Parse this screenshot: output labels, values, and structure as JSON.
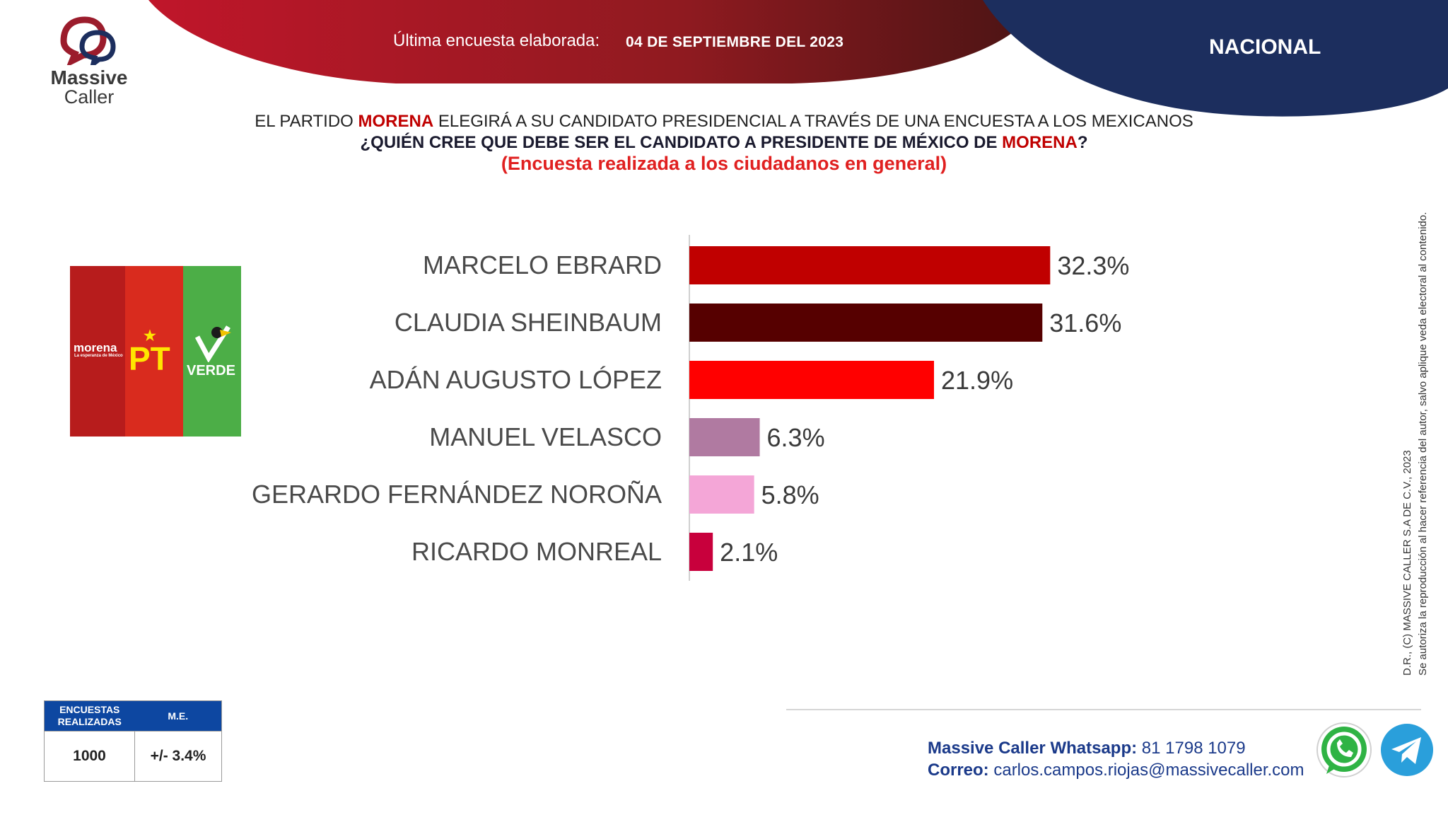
{
  "brand": {
    "name_line1": "Massive",
    "name_line2": "Caller"
  },
  "header": {
    "survey_label": "Última encuesta elaborada:",
    "survey_date": "04 DE SEPTIEMBRE DEL 2023",
    "scope": "NACIONAL",
    "colors": {
      "red": "#9d1b22",
      "navy": "#1c2e5e"
    }
  },
  "title": {
    "line1_pre": "EL PARTIDO ",
    "line1_party": "MORENA",
    "line1_post": " ELEGIRÁ A SU CANDIDATO PRESIDENCIAL A TRAVÉS DE UNA ENCUESTA A LOS MEXICANOS",
    "line2_pre": "¿QUIÉN CREE QUE DEBE SER EL CANDIDATO A PRESIDENTE DE MÉXICO DE ",
    "line2_party": "MORENA",
    "line2_post": "?",
    "line3": "(Encuesta realizada a los ciudadanos en general)"
  },
  "parties": {
    "morena": "morena",
    "morena_sub": "La esperanza de México",
    "pt": "PT",
    "verde": "VERDE"
  },
  "chart_data": {
    "type": "bar",
    "orientation": "horizontal",
    "categories": [
      "MARCELO EBRARD",
      "CLAUDIA SHEINBAUM",
      "ADÁN AUGUSTO LÓPEZ",
      "MANUEL VELASCO",
      "GERARDO FERNÁNDEZ NOROÑA",
      "RICARDO MONREAL"
    ],
    "values": [
      32.3,
      31.6,
      21.9,
      6.3,
      5.8,
      2.1
    ],
    "value_labels": [
      "32.3%",
      "31.6%",
      "21.9%",
      "6.3%",
      "5.8%",
      "2.1%"
    ],
    "colors": [
      "#c00000",
      "#560000",
      "#ff0000",
      "#b07aa1",
      "#f4a6d7",
      "#c8003c"
    ],
    "unit": "%"
  },
  "stats": {
    "col1_header": "ENCUESTAS REALIZADAS",
    "col2_header": "M.E.",
    "surveys": "1000",
    "margin_of_error": "+/- 3.4%"
  },
  "contact": {
    "whatsapp_label": "Massive Caller Whatsapp:",
    "whatsapp_value": "81 1798 1079",
    "email_label": "Correo:",
    "email_value": "carlos.campos.riojas@massivecaller.com",
    "icons": [
      "whatsapp-icon",
      "telegram-icon"
    ]
  },
  "copyright": {
    "line1": "D.R., (C) MASSIVE CALLER S.A DE C.V., 2023",
    "line2": "Se autoriza la reproducción al hacer referencia del autor, salvo aplique veda electoral al contenido."
  }
}
